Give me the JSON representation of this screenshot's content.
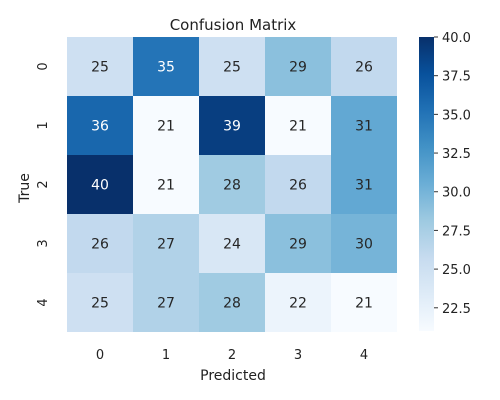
{
  "chart_data": {
    "type": "heatmap",
    "title": "Confusion Matrix",
    "xlabel": "Predicted",
    "ylabel": "True",
    "x_categories": [
      "0",
      "1",
      "2",
      "3",
      "4"
    ],
    "y_categories": [
      "0",
      "1",
      "2",
      "3",
      "4"
    ],
    "values": [
      [
        25,
        35,
        25,
        29,
        26
      ],
      [
        36,
        21,
        39,
        21,
        31
      ],
      [
        40,
        21,
        28,
        26,
        31
      ],
      [
        26,
        27,
        24,
        29,
        30
      ],
      [
        25,
        27,
        28,
        22,
        21
      ]
    ],
    "colorscale": "Blues",
    "colorbar": {
      "min": 21,
      "max": 40,
      "ticks": [
        "22.5",
        "25.0",
        "27.5",
        "30.0",
        "32.5",
        "35.0",
        "37.5",
        "40.0"
      ]
    },
    "grid": false
  }
}
